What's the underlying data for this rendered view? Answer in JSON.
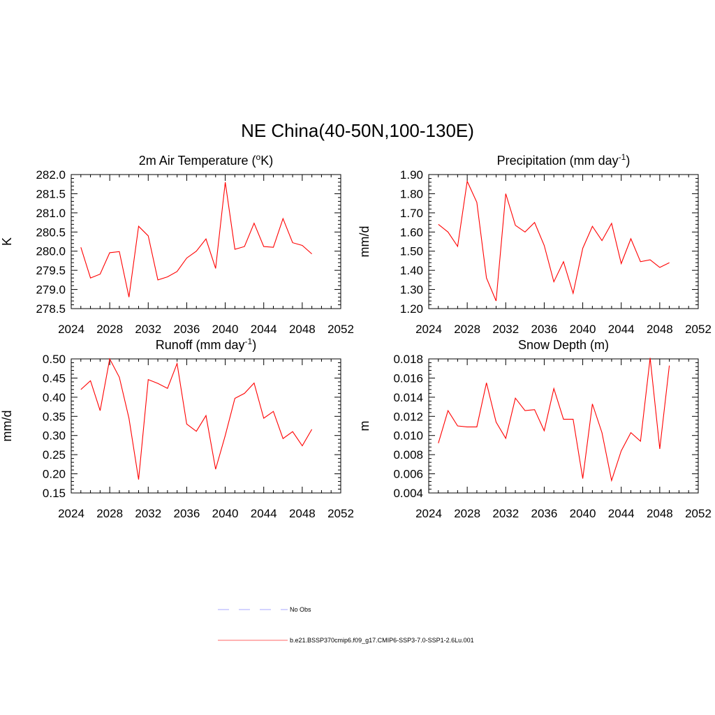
{
  "title": "NE China(40-50N,100-130E)",
  "chart_data": [
    {
      "type": "line",
      "title": "2m Air Temperature (",
      "title_sup": "o",
      "title_after": "K)",
      "ylabel": "K",
      "xlim": [
        2024,
        2052
      ],
      "xticks": [
        2024,
        2028,
        2032,
        2036,
        2040,
        2044,
        2048,
        2052
      ],
      "ylim": [
        278.5,
        282.0
      ],
      "yticks": [
        "278.5",
        "279.0",
        "279.5",
        "280.0",
        "280.5",
        "281.0",
        "281.5",
        "282.0"
      ],
      "series": [
        {
          "color": "#ff0000",
          "x": [
            2025,
            2026,
            2027,
            2028,
            2029,
            2030,
            2031,
            2032,
            2033,
            2034,
            2035,
            2036,
            2037,
            2038,
            2039,
            2040,
            2041,
            2042,
            2043,
            2044,
            2045,
            2046,
            2047,
            2048,
            2049
          ],
          "y": [
            280.1,
            279.3,
            279.4,
            279.96,
            279.99,
            278.8,
            280.65,
            280.4,
            279.25,
            279.33,
            279.47,
            279.82,
            280.0,
            280.32,
            279.55,
            281.8,
            280.05,
            280.12,
            280.73,
            280.12,
            280.1,
            280.85,
            280.22,
            280.15,
            279.93
          ]
        }
      ]
    },
    {
      "type": "line",
      "title": "Precipitation (mm day",
      "title_sup": "-1",
      "title_after": ")",
      "ylabel": "mm/d",
      "xlim": [
        2024,
        2052
      ],
      "xticks": [
        2024,
        2028,
        2032,
        2036,
        2040,
        2044,
        2048,
        2052
      ],
      "ylim": [
        1.2,
        1.9
      ],
      "yticks": [
        "1.20",
        "1.30",
        "1.40",
        "1.50",
        "1.60",
        "1.70",
        "1.80",
        "1.90"
      ],
      "series": [
        {
          "color": "#ff0000",
          "x": [
            2025,
            2026,
            2027,
            2028,
            2029,
            2030,
            2031,
            2032,
            2033,
            2034,
            2035,
            2036,
            2037,
            2038,
            2039,
            2040,
            2041,
            2042,
            2043,
            2044,
            2045,
            2046,
            2047,
            2048,
            2049
          ],
          "y": [
            1.64,
            1.6,
            1.525,
            1.865,
            1.755,
            1.36,
            1.24,
            1.8,
            1.635,
            1.6,
            1.65,
            1.53,
            1.34,
            1.445,
            1.28,
            1.515,
            1.63,
            1.555,
            1.645,
            1.435,
            1.565,
            1.445,
            1.455,
            1.415,
            1.44
          ]
        }
      ]
    },
    {
      "type": "line",
      "title": "Runoff (mm day",
      "title_sup": "-1",
      "title_after": ")",
      "ylabel": "mm/d",
      "xlim": [
        2024,
        2052
      ],
      "xticks": [
        2024,
        2028,
        2032,
        2036,
        2040,
        2044,
        2048,
        2052
      ],
      "ylim": [
        0.15,
        0.5
      ],
      "yticks": [
        "0.15",
        "0.20",
        "0.25",
        "0.30",
        "0.35",
        "0.40",
        "0.45",
        "0.50"
      ],
      "series": [
        {
          "color": "#ff0000",
          "x": [
            2025,
            2026,
            2027,
            2028,
            2029,
            2030,
            2031,
            2032,
            2033,
            2034,
            2035,
            2036,
            2037,
            2038,
            2039,
            2040,
            2041,
            2042,
            2043,
            2044,
            2045,
            2046,
            2047,
            2048,
            2049
          ],
          "y": [
            0.42,
            0.443,
            0.365,
            0.5,
            0.452,
            0.345,
            0.185,
            0.446,
            0.436,
            0.423,
            0.488,
            0.33,
            0.311,
            0.352,
            0.212,
            0.3,
            0.397,
            0.41,
            0.437,
            0.345,
            0.363,
            0.292,
            0.31,
            0.273,
            0.316
          ]
        }
      ]
    },
    {
      "type": "line",
      "title": "Snow Depth (m)",
      "title_sup": "",
      "title_after": "",
      "ylabel": "m",
      "xlim": [
        2024,
        2052
      ],
      "xticks": [
        2024,
        2028,
        2032,
        2036,
        2040,
        2044,
        2048,
        2052
      ],
      "ylim": [
        0.004,
        0.018
      ],
      "yticks": [
        "0.004",
        "0.006",
        "0.008",
        "0.010",
        "0.012",
        "0.014",
        "0.016",
        "0.018"
      ],
      "series": [
        {
          "color": "#ff0000",
          "x": [
            2025,
            2026,
            2027,
            2028,
            2029,
            2030,
            2031,
            2032,
            2033,
            2034,
            2035,
            2036,
            2037,
            2038,
            2039,
            2040,
            2041,
            2042,
            2043,
            2044,
            2045,
            2046,
            2047,
            2048,
            2049
          ],
          "y": [
            0.0092,
            0.0126,
            0.011,
            0.0109,
            0.0109,
            0.0155,
            0.0114,
            0.0097,
            0.0139,
            0.0126,
            0.0127,
            0.0105,
            0.0149,
            0.0117,
            0.0117,
            0.0055,
            0.0133,
            0.0103,
            0.0053,
            0.0084,
            0.0103,
            0.0094,
            0.0181,
            0.0086,
            0.0173
          ]
        }
      ]
    }
  ],
  "legend": [
    {
      "label": "No Obs",
      "color": "#aaaaff",
      "dash": true
    },
    {
      "label": "b.e21.BSSP370cmip6.f09_g17.CMIP6-SSP3-7.0-SSP1-2.6Lu.001",
      "color": "#ff6666",
      "dash": false
    }
  ]
}
